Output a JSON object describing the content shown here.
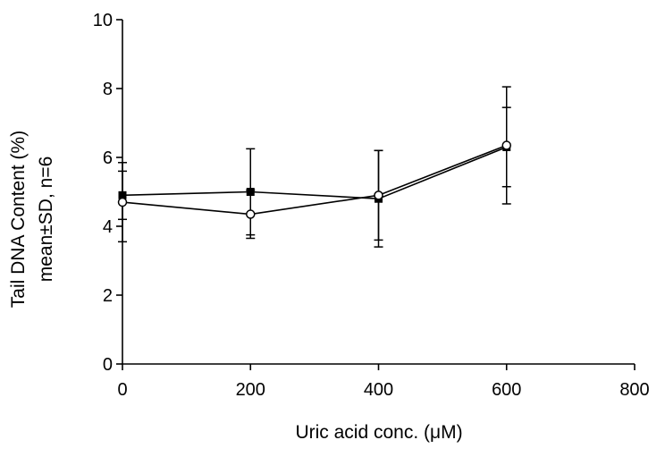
{
  "chart_data": {
    "type": "line",
    "xlabel": "Uric acid conc. (μM)",
    "ylabel_line1": "Tail DNA Content (%)",
    "ylabel_line2": "mean±SD, n=6",
    "xlim": [
      0,
      800
    ],
    "ylim": [
      0,
      10
    ],
    "x_ticks": [
      "0",
      "200",
      "400",
      "600",
      "800"
    ],
    "y_ticks": [
      "0",
      "2",
      "4",
      "6",
      "8",
      "10"
    ],
    "grid": false,
    "legend": "none",
    "x": [
      0,
      200,
      400,
      600
    ],
    "series": [
      {
        "marker": "filled-square",
        "values": [
          4.9,
          5.0,
          4.8,
          6.3
        ],
        "error": [
          0.7,
          1.25,
          1.4,
          1.15
        ],
        "color": "#000000"
      },
      {
        "marker": "open-circle",
        "values": [
          4.7,
          4.35,
          4.9,
          6.35
        ],
        "error": [
          1.15,
          0.7,
          1.3,
          1.7
        ],
        "color": "#000000"
      }
    ]
  }
}
